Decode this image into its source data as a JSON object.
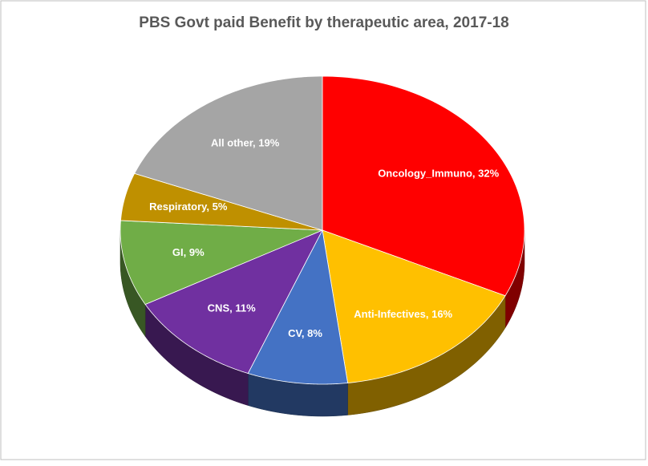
{
  "chart_data": {
    "type": "pie",
    "title": "PBS Govt paid Benefit by therapeutic area, 2017-18",
    "categories": [
      "Oncology_Immuno",
      "Anti-Infectives",
      "CV",
      "CNS",
      "GI",
      "Respiratory",
      "All other"
    ],
    "values": [
      32,
      16,
      8,
      11,
      9,
      5,
      19
    ],
    "value_labels": [
      "Oncology_Immuno, 32%",
      "Anti-Infectives, 16%",
      "CV, 8%",
      "CNS, 11%",
      "GI, 9%",
      "Respiratory, 5%",
      "All other, 19%"
    ],
    "colors": [
      "#ff0000",
      "#ffc000",
      "#4472c4",
      "#7030a0",
      "#70ad47",
      "#bf9000",
      "#a5a5a5"
    ]
  }
}
